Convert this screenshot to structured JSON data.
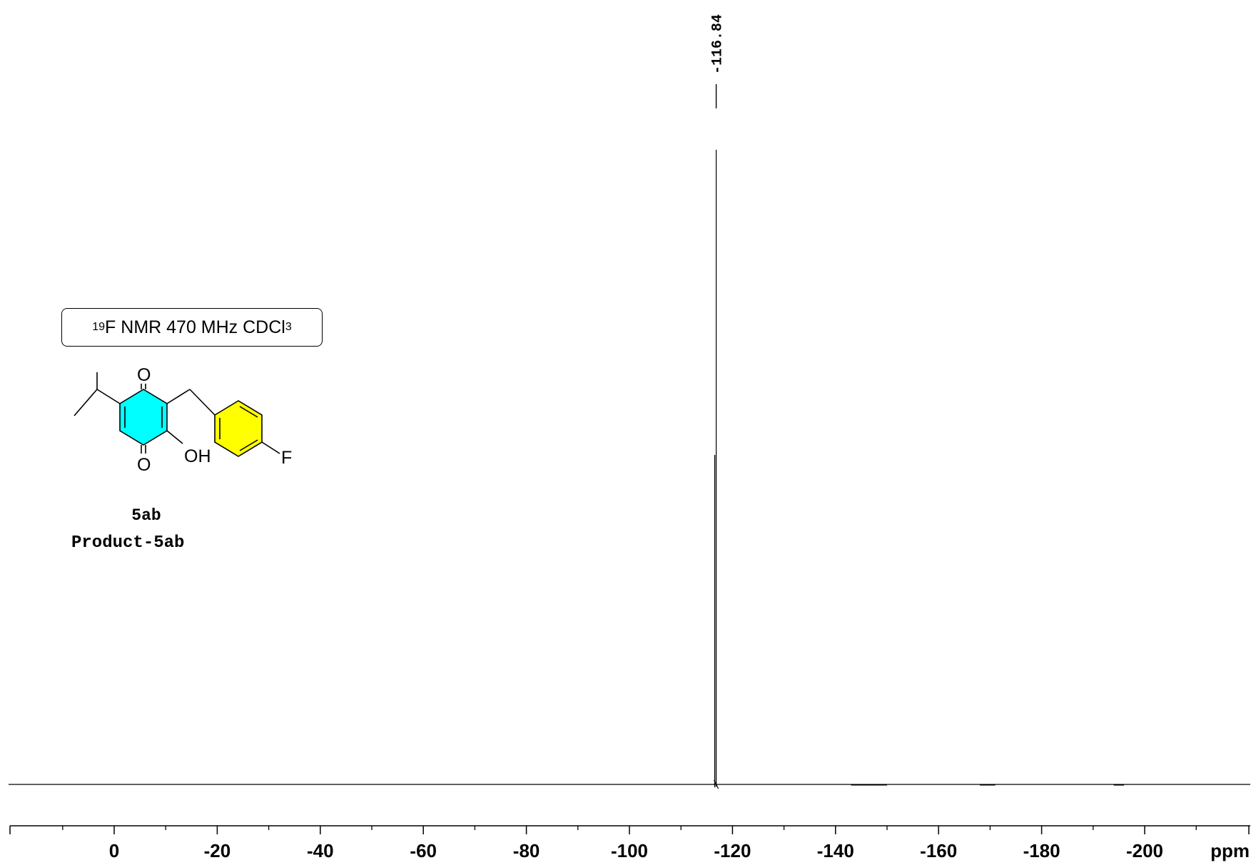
{
  "chart_data": {
    "type": "line",
    "title": "",
    "xlabel": "ppm",
    "ylabel": "",
    "xlim": [
      20,
      -220
    ],
    "x_ticks": [
      0,
      -20,
      -40,
      -60,
      -80,
      -100,
      -120,
      -140,
      -160,
      -180,
      -200
    ],
    "x_tick_labels": [
      "0",
      "-20",
      "-40",
      "-60",
      "-80",
      "-100",
      "-120",
      "-140",
      "-160",
      "-180",
      "-200"
    ],
    "axis_unit_label": "ppm",
    "grid": false,
    "peaks": [
      {
        "shift_ppm": -116.84,
        "label": "-116.84",
        "relative_intensity": 1.0
      }
    ]
  },
  "annotation": {
    "isotope": "19",
    "experiment": "F NMR 470 MHz CDCl",
    "solvent_subscript": "3"
  },
  "compound": {
    "code": "5ab",
    "name": "Product-5ab",
    "atoms": {
      "o_top": "O",
      "o_bottom": "O",
      "oh": "OH",
      "f": "F"
    },
    "ring_colors": {
      "quinone": "#00ffff",
      "aryl": "#ffff00"
    }
  }
}
